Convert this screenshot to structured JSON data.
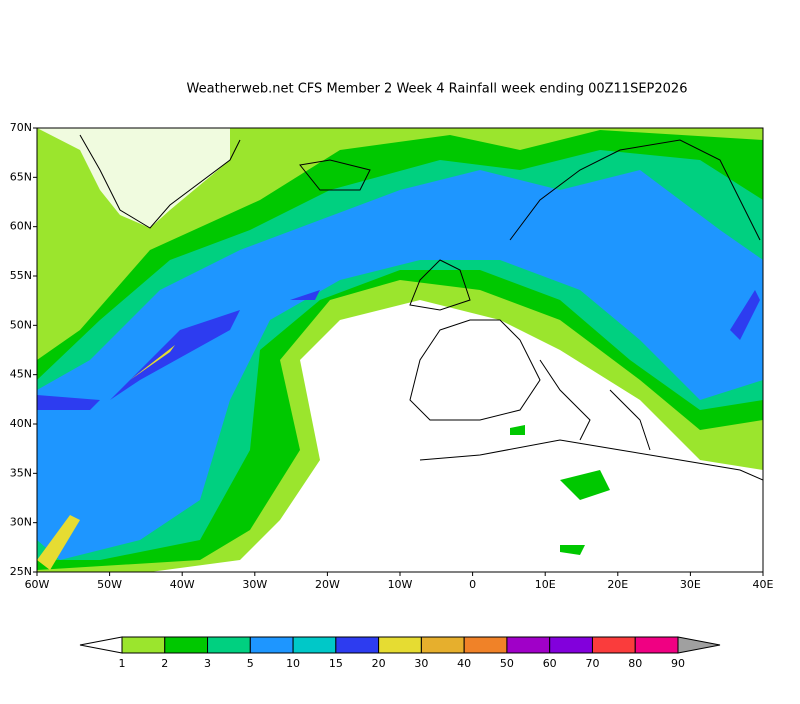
{
  "header": {
    "title": "Weatherweb.net CFS Member 2 Week 4 Rainfall week ending 00Z11SEP2026"
  },
  "map": {
    "lat_range": [
      25,
      70
    ],
    "lon_range": [
      -60,
      40
    ],
    "lat_labels": [
      {
        "value": 70,
        "label": "70N"
      },
      {
        "value": 65,
        "label": "65N"
      },
      {
        "value": 60,
        "label": "60N"
      },
      {
        "value": 55,
        "label": "55N"
      },
      {
        "value": 50,
        "label": "50N"
      },
      {
        "value": 45,
        "label": "45N"
      },
      {
        "value": 40,
        "label": "40N"
      },
      {
        "value": 35,
        "label": "35N"
      },
      {
        "value": 30,
        "label": "30N"
      },
      {
        "value": 25,
        "label": "25N"
      }
    ],
    "lon_labels": [
      {
        "value": -60,
        "label": "60W"
      },
      {
        "value": -50,
        "label": "50W"
      },
      {
        "value": -40,
        "label": "40W"
      },
      {
        "value": -30,
        "label": "30W"
      },
      {
        "value": -20,
        "label": "20W"
      },
      {
        "value": -10,
        "label": "10W"
      },
      {
        "value": 0,
        "label": "0"
      },
      {
        "value": 10,
        "label": "10E"
      },
      {
        "value": 20,
        "label": "20E"
      },
      {
        "value": 30,
        "label": "30E"
      },
      {
        "value": 40,
        "label": "40E"
      }
    ]
  },
  "colorbar": {
    "levels": [
      1,
      2,
      3,
      5,
      10,
      15,
      20,
      30,
      40,
      50,
      60,
      70,
      80,
      90
    ],
    "colors": [
      "#9be52d",
      "#00c800",
      "#00d080",
      "#1e96ff",
      "#00c8c8",
      "#2d3cf0",
      "#e6dc32",
      "#e6af2d",
      "#f08228",
      "#a000c8",
      "#8200dc",
      "#fa3c3c",
      "#f00082"
    ],
    "under_color": "#ffffff",
    "over_color": "#a0a0a0"
  }
}
